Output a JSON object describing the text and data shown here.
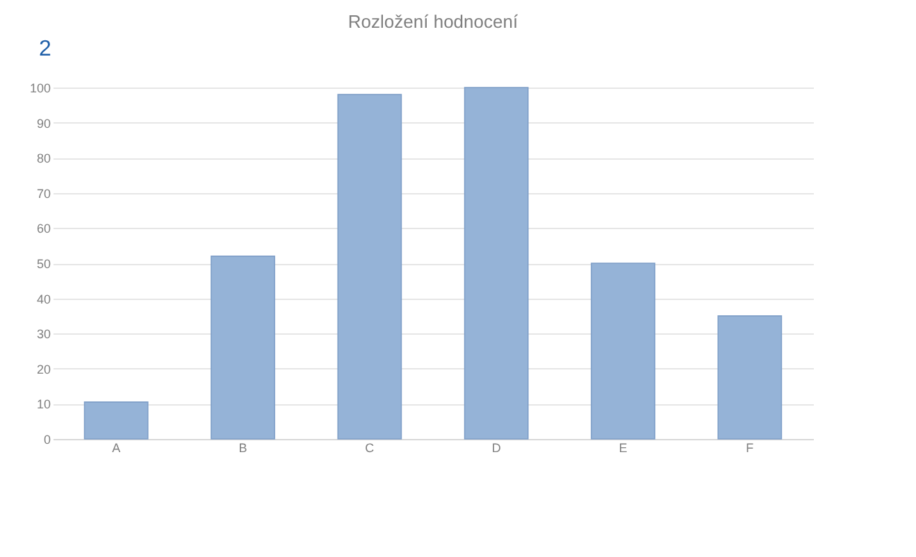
{
  "chart_data": {
    "type": "bar",
    "title": "Rozložení hodnocení",
    "annotations": [
      "2"
    ],
    "categories": [
      "A",
      "B",
      "C",
      "D",
      "E",
      "F"
    ],
    "values": [
      10.5,
      52,
      98,
      100,
      50,
      35
    ],
    "color": "#95b3d7",
    "ylim": [
      0,
      100
    ],
    "yticks": [
      0,
      10,
      20,
      30,
      40,
      50,
      60,
      70,
      80,
      90,
      100
    ],
    "grid": "y"
  }
}
